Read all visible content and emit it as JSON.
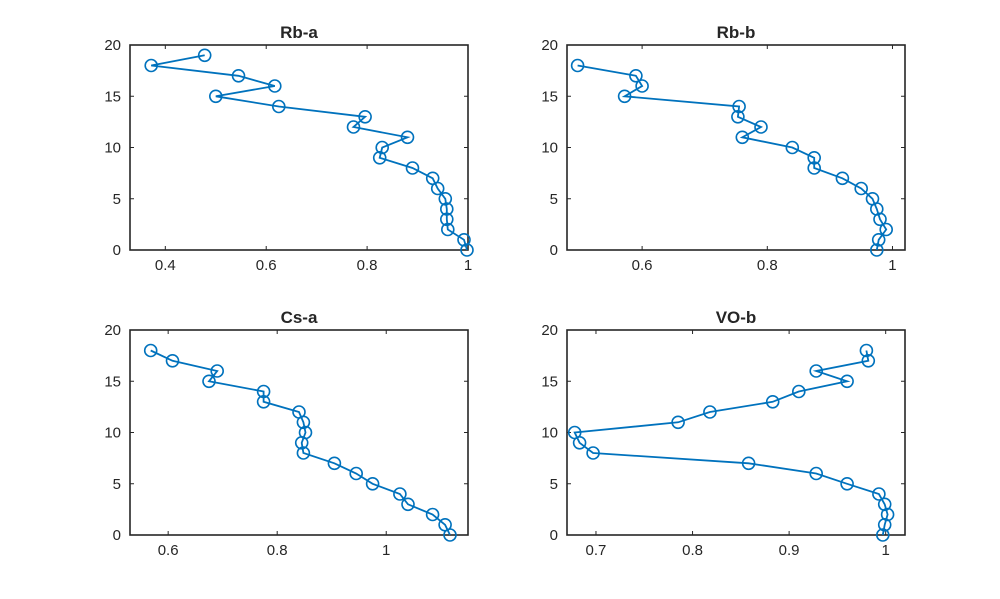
{
  "chart_data": [
    {
      "type": "line",
      "title": "Rb-a",
      "xlabel": "",
      "ylabel": "",
      "xlim": [
        0.33,
        1.0
      ],
      "ylim": [
        0,
        20
      ],
      "xticks": [
        0.4,
        0.6,
        0.8,
        1
      ],
      "xtick_labels": [
        "0.4",
        "0.6",
        "0.8",
        "1"
      ],
      "yticks": [
        0,
        5,
        10,
        15,
        20
      ],
      "ytick_labels": [
        "0",
        "5",
        "10",
        "15",
        "20"
      ],
      "series": [
        {
          "name": "Rb-a",
          "color": "#0072BD",
          "marker": "circle",
          "x": [
            0.998,
            0.992,
            0.96,
            0.958,
            0.958,
            0.955,
            0.94,
            0.93,
            0.89,
            0.825,
            0.83,
            0.88,
            0.773,
            0.796,
            0.625,
            0.5,
            0.617,
            0.545,
            0.372,
            0.478
          ],
          "y": [
            0,
            1,
            2,
            3,
            4,
            5,
            6,
            7,
            8,
            9,
            10,
            11,
            12,
            13,
            14,
            15,
            16,
            17,
            18,
            19
          ]
        }
      ]
    },
    {
      "type": "line",
      "title": "Rb-b",
      "xlabel": "",
      "ylabel": "",
      "xlim": [
        0.48,
        1.02
      ],
      "ylim": [
        0,
        20
      ],
      "xticks": [
        0.6,
        0.8,
        1
      ],
      "xtick_labels": [
        "0.6",
        "0.8",
        "1"
      ],
      "yticks": [
        0,
        5,
        10,
        15,
        20
      ],
      "ytick_labels": [
        "0",
        "5",
        "10",
        "15",
        "20"
      ],
      "series": [
        {
          "name": "Rb-b",
          "color": "#0072BD",
          "marker": "circle",
          "x": [
            0.975,
            0.978,
            0.99,
            0.98,
            0.975,
            0.968,
            0.95,
            0.92,
            0.875,
            0.875,
            0.84,
            0.76,
            0.79,
            0.753,
            0.755,
            0.572,
            0.6,
            0.59,
            0.497
          ],
          "y": [
            0,
            1,
            2,
            3,
            4,
            5,
            6,
            7,
            8,
            9,
            10,
            11,
            12,
            13,
            14,
            15,
            16,
            17,
            18
          ]
        }
      ]
    },
    {
      "type": "line",
      "title": "Cs-a",
      "xlabel": "",
      "ylabel": "",
      "xlim": [
        0.53,
        1.15
      ],
      "ylim": [
        0,
        20
      ],
      "xticks": [
        0.6,
        0.8,
        1
      ],
      "xtick_labels": [
        "0.6",
        "0.8",
        "1"
      ],
      "yticks": [
        0,
        5,
        10,
        15,
        20
      ],
      "ytick_labels": [
        "0",
        "5",
        "10",
        "15",
        "20"
      ],
      "series": [
        {
          "name": "Cs-a",
          "color": "#0072BD",
          "marker": "circle",
          "x": [
            1.117,
            1.108,
            1.085,
            1.04,
            1.025,
            0.975,
            0.945,
            0.905,
            0.848,
            0.845,
            0.852,
            0.848,
            0.84,
            0.775,
            0.775,
            0.675,
            0.69,
            0.608,
            0.568
          ],
          "y": [
            0,
            1,
            2,
            3,
            4,
            5,
            6,
            7,
            8,
            9,
            10,
            11,
            12,
            13,
            14,
            15,
            16,
            17,
            18
          ]
        }
      ]
    },
    {
      "type": "line",
      "title": "VO-b",
      "xlabel": "",
      "ylabel": "",
      "xlim": [
        0.67,
        1.02
      ],
      "ylim": [
        0,
        20
      ],
      "xticks": [
        0.7,
        0.8,
        0.9,
        1
      ],
      "xtick_labels": [
        "0.7",
        "0.8",
        "0.9",
        "1"
      ],
      "yticks": [
        0,
        5,
        10,
        15,
        20
      ],
      "ytick_labels": [
        "0",
        "5",
        "10",
        "15",
        "20"
      ],
      "series": [
        {
          "name": "VO-b",
          "color": "#0072BD",
          "marker": "circle",
          "x": [
            0.997,
            0.999,
            1.002,
            0.999,
            0.993,
            0.96,
            0.928,
            0.858,
            0.697,
            0.683,
            0.678,
            0.785,
            0.818,
            0.883,
            0.91,
            0.96,
            0.928,
            0.982,
            0.98
          ],
          "y": [
            0,
            1,
            2,
            3,
            4,
            5,
            6,
            7,
            8,
            9,
            10,
            11,
            12,
            13,
            14,
            15,
            16,
            17,
            18
          ]
        }
      ]
    }
  ]
}
